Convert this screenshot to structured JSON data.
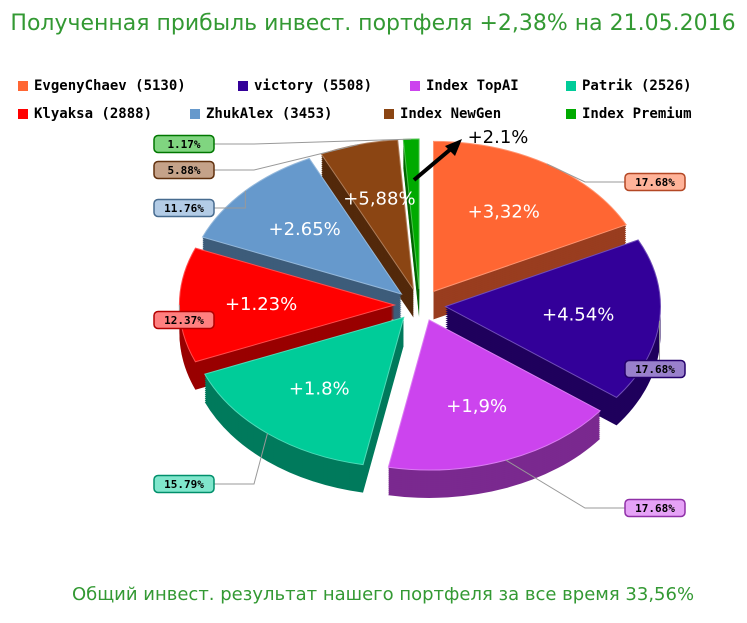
{
  "chart_data": {
    "type": "pie",
    "title": "Полученная прибыль инвест. портфеля +2,38% на 21.05.2016",
    "subtitle": "Общий инвест. результат нашего портфеля за все время 33,56%",
    "categories": [
      "EvgenyChaev (5130)",
      "victory (5508)",
      "Index TopAI",
      "Patrik (2526)",
      "Klyaksa (2888)",
      "ZhukAlex (3453)",
      "Index NewGen",
      "Index Premium"
    ],
    "values": [
      17.68,
      17.68,
      17.68,
      15.79,
      12.37,
      11.76,
      5.88,
      1.17
    ],
    "value_labels": [
      "17.68%",
      "17.68%",
      "17.68%",
      "15.79%",
      "12.37%",
      "11.76%",
      "5.88%",
      "1.17%"
    ],
    "slice_annotations": [
      "+3,32%",
      "+4.54%",
      "+1,9%",
      "+1.8%",
      "+1.23%",
      "+2.65%",
      "+5,88%",
      "+2.1%"
    ],
    "colors": [
      "#ff6633",
      "#330099",
      "#cc44ee",
      "#00cc99",
      "#ff0000",
      "#6699cc",
      "#8b4513",
      "#00aa00"
    ]
  }
}
